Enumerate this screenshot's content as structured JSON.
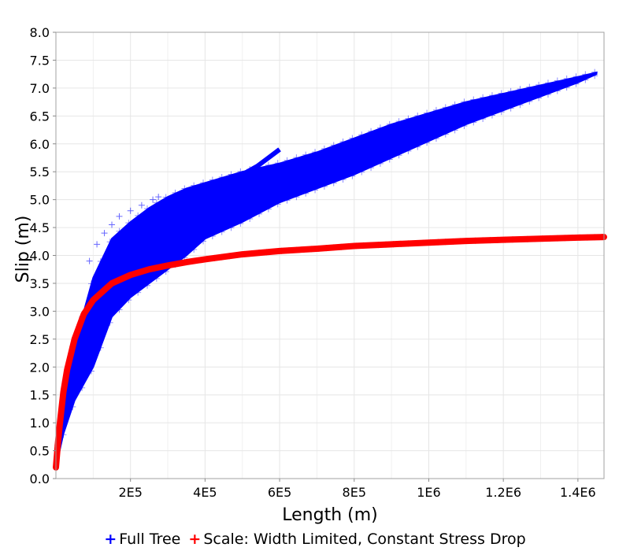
{
  "chart_data": {
    "type": "scatter",
    "title": "",
    "xlabel": "Length (m)",
    "ylabel": "Slip (m)",
    "xlim": [
      0,
      1470000
    ],
    "ylim": [
      0,
      8.0
    ],
    "grid": true,
    "legend_position": "bottom",
    "x_ticks": [
      {
        "value": 200000,
        "label": "2E5"
      },
      {
        "value": 400000,
        "label": "4E5"
      },
      {
        "value": 600000,
        "label": "6E5"
      },
      {
        "value": 800000,
        "label": "8E5"
      },
      {
        "value": 1000000,
        "label": "1E6"
      },
      {
        "value": 1200000,
        "label": "1.2E6"
      },
      {
        "value": 1400000,
        "label": "1.4E6"
      }
    ],
    "y_ticks": [
      {
        "value": 0.0,
        "label": "0.0"
      },
      {
        "value": 0.5,
        "label": "0.5"
      },
      {
        "value": 1.0,
        "label": "1.0"
      },
      {
        "value": 1.5,
        "label": "1.5"
      },
      {
        "value": 2.0,
        "label": "2.0"
      },
      {
        "value": 2.5,
        "label": "2.5"
      },
      {
        "value": 3.0,
        "label": "3.0"
      },
      {
        "value": 3.5,
        "label": "3.5"
      },
      {
        "value": 4.0,
        "label": "4.0"
      },
      {
        "value": 4.5,
        "label": "4.5"
      },
      {
        "value": 5.0,
        "label": "5.0"
      },
      {
        "value": 5.5,
        "label": "5.5"
      },
      {
        "value": 6.0,
        "label": "6.0"
      },
      {
        "value": 6.5,
        "label": "6.5"
      },
      {
        "value": 7.0,
        "label": "7.0"
      },
      {
        "value": 7.5,
        "label": "7.5"
      },
      {
        "value": 8.0,
        "label": "8.0"
      }
    ],
    "series": [
      {
        "name": "Full Tree",
        "color": "#0000ff",
        "marker": "+",
        "upper_envelope": {
          "x": [
            0,
            20000,
            50000,
            100000,
            150000,
            200000,
            250000,
            300000,
            350000,
            400000,
            500000,
            600000,
            700000,
            800000,
            900000,
            1000000,
            1100000,
            1200000,
            1300000,
            1400000,
            1450000
          ],
          "y": [
            0.3,
            1.5,
            2.4,
            3.6,
            4.3,
            4.6,
            4.85,
            5.05,
            5.2,
            5.3,
            5.5,
            5.65,
            5.85,
            6.1,
            6.35,
            6.55,
            6.75,
            6.9,
            7.05,
            7.2,
            7.28
          ]
        },
        "lower_envelope": {
          "x": [
            0,
            20000,
            50000,
            100000,
            150000,
            200000,
            250000,
            300000,
            350000,
            400000,
            500000,
            600000,
            700000,
            800000,
            900000,
            1000000,
            1100000,
            1200000,
            1300000,
            1400000,
            1450000
          ],
          "y": [
            0.2,
            0.8,
            1.4,
            2.0,
            2.9,
            3.25,
            3.5,
            3.75,
            4.0,
            4.3,
            4.6,
            4.95,
            5.2,
            5.45,
            5.75,
            6.05,
            6.35,
            6.6,
            6.85,
            7.1,
            7.25
          ]
        },
        "outlier_branch": {
          "x": [
            420000,
            460000,
            500000,
            540000,
            570000,
            600000
          ],
          "y": [
            5.15,
            5.3,
            5.45,
            5.6,
            5.75,
            5.9
          ]
        },
        "sparse_points": {
          "x": [
            90000,
            110000,
            130000,
            150000,
            170000,
            200000,
            230000,
            260000,
            275000
          ],
          "y": [
            3.9,
            4.2,
            4.4,
            4.55,
            4.7,
            4.8,
            4.9,
            5.0,
            5.05
          ]
        }
      },
      {
        "name": "Scale: Width Limited, Constant Stress Drop",
        "color": "#ff0000",
        "marker": "+",
        "x": [
          0,
          5000,
          10000,
          20000,
          30000,
          50000,
          75000,
          100000,
          150000,
          200000,
          250000,
          300000,
          350000,
          400000,
          500000,
          600000,
          700000,
          800000,
          900000,
          1000000,
          1100000,
          1200000,
          1300000,
          1400000,
          1470000
        ],
        "y": [
          0.2,
          0.6,
          0.95,
          1.55,
          1.95,
          2.5,
          2.95,
          3.2,
          3.5,
          3.65,
          3.75,
          3.82,
          3.88,
          3.93,
          4.02,
          4.08,
          4.12,
          4.17,
          4.2,
          4.23,
          4.26,
          4.28,
          4.3,
          4.32,
          4.33
        ]
      }
    ]
  }
}
